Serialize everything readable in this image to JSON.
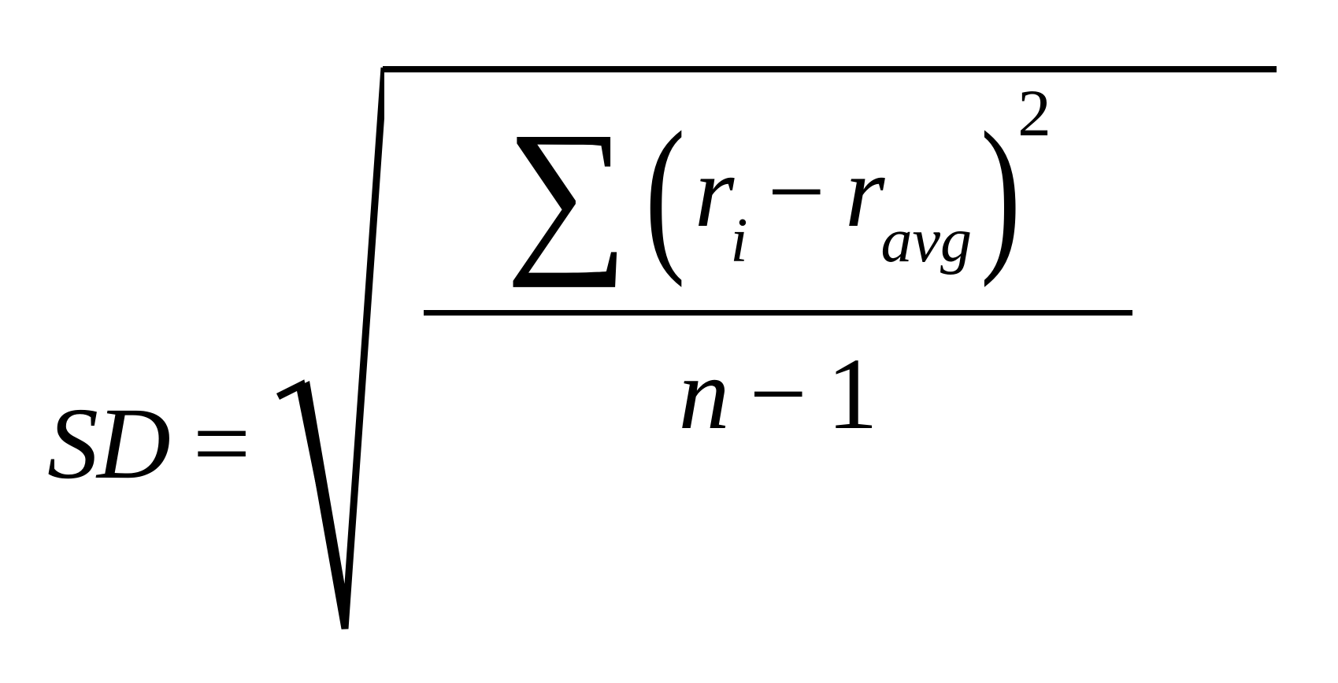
{
  "formula": {
    "lhs": "SD",
    "equals": "=",
    "sigma": "∑",
    "lparen": "(",
    "rparen": ")",
    "r1": "r",
    "sub_i": "i",
    "minus_num": "−",
    "r2": "r",
    "sub_avg": "avg",
    "exponent": "2",
    "denom_n": "n",
    "denom_minus": "−",
    "denom_one": "1"
  },
  "style": {
    "text_color": "#000000",
    "background": "#ffffff",
    "base_fontsize": 130,
    "sigma_fontsize": 220,
    "sub_fontsize": 80,
    "exp_fontsize": 85,
    "radical_stroke": 8,
    "overbar_width": 1135,
    "fracbar_width": 900,
    "fracbar_height": 7
  }
}
